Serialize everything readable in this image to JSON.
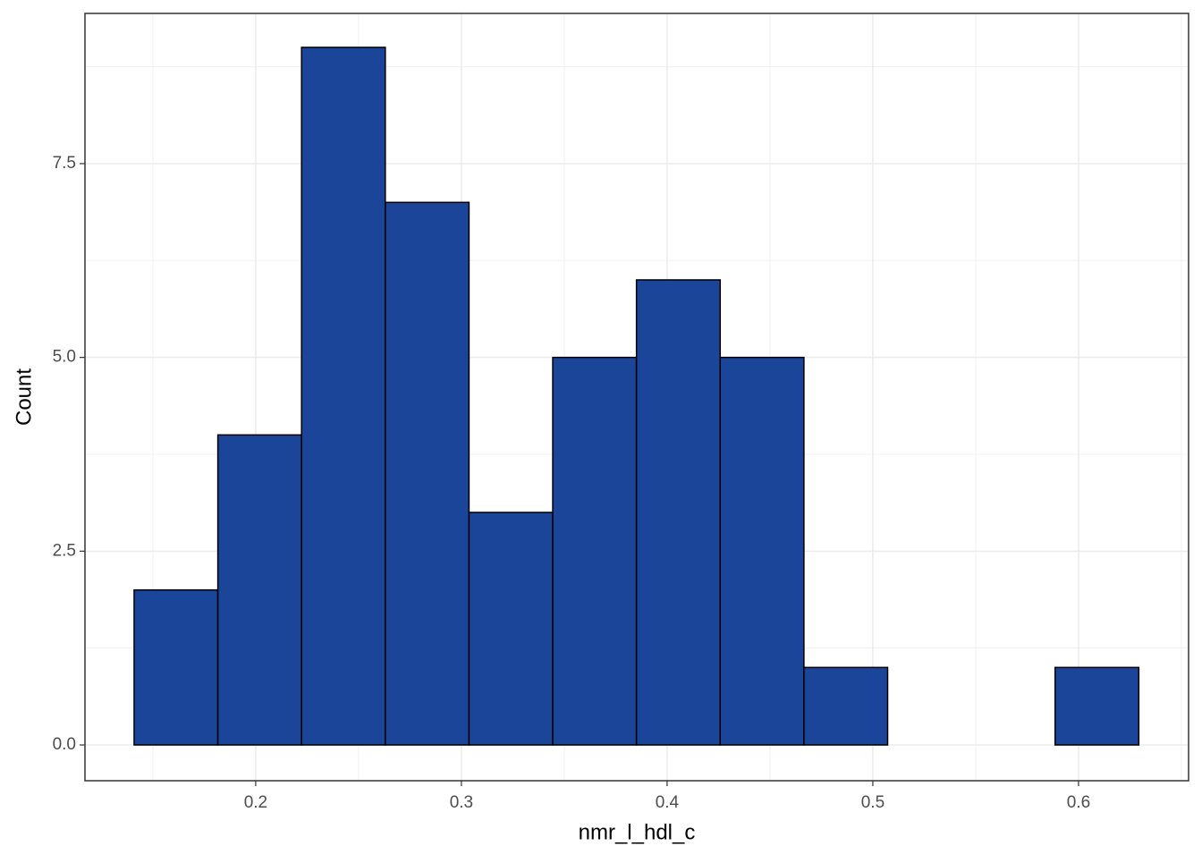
{
  "chart_data": {
    "type": "histogram",
    "x_label": "nmr_l_hdl_c",
    "y_label": "Count",
    "bins": [
      0.1409,
      0.1816,
      0.2223,
      0.263,
      0.3037,
      0.3444,
      0.3851,
      0.4258,
      0.4665,
      0.5072,
      0.5479,
      0.5886,
      0.6293
    ],
    "values": [
      2,
      4,
      9,
      7,
      3,
      5,
      6,
      5,
      1,
      0,
      0,
      1
    ],
    "color": "#1a4599",
    "edge_color": "#000000",
    "xlim": [
      0.117,
      0.6535
    ],
    "ylim": [
      -0.4615,
      9.438
    ],
    "xticks": [
      0.2,
      0.3,
      0.4,
      0.5,
      0.6
    ],
    "yticks": [
      {
        "value": 0,
        "label": "0.0"
      },
      2.5,
      {
        "value": 5,
        "label": "5.0"
      },
      7.5
    ],
    "grid": true
  }
}
